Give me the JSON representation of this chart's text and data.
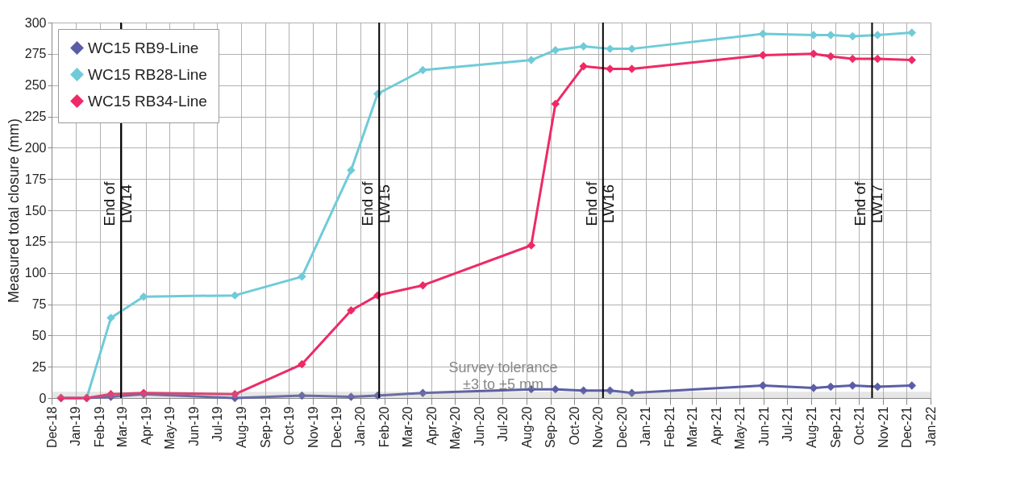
{
  "chart_data": {
    "type": "line",
    "ylabel": "Measured total closure (mm)",
    "x": [
      "2018-12-13",
      "2019-01-15",
      "2019-02-15",
      "2019-03-29",
      "2019-07-24",
      "2019-10-18",
      "2019-12-20",
      "2020-01-23",
      "2020-03-21",
      "2020-08-07",
      "2020-09-07",
      "2020-10-13",
      "2020-11-16",
      "2020-12-14",
      "2021-05-31",
      "2021-08-04",
      "2021-08-26",
      "2021-09-23",
      "2021-10-25",
      "2021-12-08"
    ],
    "series": [
      {
        "name": "WC15 RB9-Line",
        "color": "#5b5ea6",
        "values": [
          0,
          0,
          1,
          3,
          0,
          2,
          1,
          2,
          4,
          7,
          7,
          6,
          6,
          4,
          10,
          8,
          9,
          10,
          9,
          10
        ]
      },
      {
        "name": "WC15 RB28-Line",
        "color": "#6fcbd8",
        "values": [
          0,
          0,
          64,
          81,
          82,
          97,
          182,
          243,
          262,
          270,
          278,
          281,
          279,
          279,
          291,
          290,
          290,
          289,
          290,
          292
        ]
      },
      {
        "name": "WC15 RB34-Line",
        "color": "#ee2a66",
        "values": [
          0,
          0,
          3,
          4,
          3,
          27,
          70,
          82,
          90,
          122,
          235,
          265,
          263,
          263,
          274,
          275,
          273,
          271,
          271,
          270
        ]
      }
    ],
    "xlim": [
      "2018-12-01",
      "2022-01-01"
    ],
    "xticks": [
      {
        "value": "2018-12",
        "label": "Dec-18"
      },
      {
        "value": "2019-01",
        "label": "Jan-19"
      },
      {
        "value": "2019-02",
        "label": "Feb-19"
      },
      {
        "value": "2019-03",
        "label": "Mar-19"
      },
      {
        "value": "2019-04",
        "label": "Apr-19"
      },
      {
        "value": "2019-05",
        "label": "May-19"
      },
      {
        "value": "2019-06",
        "label": "Jun-19"
      },
      {
        "value": "2019-07",
        "label": "Jul-19"
      },
      {
        "value": "2019-08",
        "label": "Aug-19"
      },
      {
        "value": "2019-09",
        "label": "Sep-19"
      },
      {
        "value": "2019-10",
        "label": "Oct-19"
      },
      {
        "value": "2019-11",
        "label": "Nov-19"
      },
      {
        "value": "2019-12",
        "label": "Dec-19"
      },
      {
        "value": "2020-01",
        "label": "Jan-20"
      },
      {
        "value": "2020-02",
        "label": "Feb-20"
      },
      {
        "value": "2020-03",
        "label": "Mar-20"
      },
      {
        "value": "2020-04",
        "label": "Apr-20"
      },
      {
        "value": "2020-05",
        "label": "May-20"
      },
      {
        "value": "2020-06",
        "label": "Jun-20"
      },
      {
        "value": "2020-07",
        "label": "Jul-20"
      },
      {
        "value": "2020-08",
        "label": "Aug-20"
      },
      {
        "value": "2020-09",
        "label": "Sep-20"
      },
      {
        "value": "2020-10",
        "label": "Oct-20"
      },
      {
        "value": "2020-11",
        "label": "Nov-20"
      },
      {
        "value": "2020-12",
        "label": "Dec-20"
      },
      {
        "value": "2021-01",
        "label": "Jan-21"
      },
      {
        "value": "2021-02",
        "label": "Feb-21"
      },
      {
        "value": "2021-03",
        "label": "Mar-21"
      },
      {
        "value": "2021-04",
        "label": "Apr-21"
      },
      {
        "value": "2021-05",
        "label": "May-21"
      },
      {
        "value": "2021-06",
        "label": "Jun-21"
      },
      {
        "value": "2021-07",
        "label": "Jul-21"
      },
      {
        "value": "2021-08",
        "label": "Aug-21"
      },
      {
        "value": "2021-09",
        "label": "Sep-21"
      },
      {
        "value": "2021-10",
        "label": "Oct-21"
      },
      {
        "value": "2021-11",
        "label": "Nov-21"
      },
      {
        "value": "2021-12",
        "label": "Dec-21"
      },
      {
        "value": "2022-01",
        "label": "Jan-22"
      }
    ],
    "ylim": [
      0,
      300
    ],
    "yticks": [
      0,
      25,
      50,
      75,
      100,
      125,
      150,
      175,
      200,
      225,
      250,
      275,
      300
    ],
    "ref_lines": [
      {
        "axis": "x",
        "value": "2019-02-28",
        "label": "End of\nLW14",
        "color": "#000000"
      },
      {
        "axis": "x",
        "value": "2020-01-25",
        "label": "End of\nLW15",
        "color": "#000000"
      },
      {
        "axis": "x",
        "value": "2020-11-07",
        "label": "End of\nLW16",
        "color": "#000000"
      },
      {
        "axis": "x",
        "value": "2021-10-18",
        "label": "End of\nLW17",
        "color": "#000000"
      }
    ],
    "bands": [
      {
        "axis": "y",
        "from": 0,
        "to": 5,
        "label": "Survey tolerance\n±3 to ±5 mm",
        "color": "#9a9a9a"
      }
    ],
    "grid": true,
    "legend": "top left",
    "marker": "diamond",
    "line_style": "solid"
  }
}
